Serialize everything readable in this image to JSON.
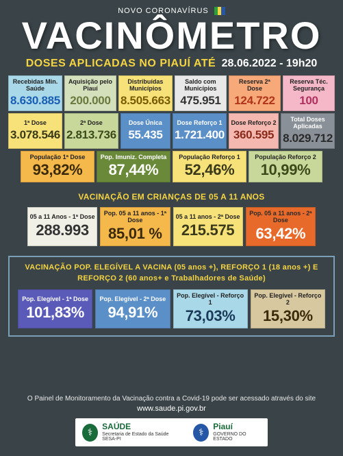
{
  "header": {
    "pretitle": "NOVO CORONAVÍRUS",
    "flag_colors": [
      "#2e9e3a",
      "#f5d442",
      "#2657a6"
    ],
    "title": "VACINÔMETRO",
    "subtitle1": "DOSES APLICADAS NO PIAUÍ ATÉ",
    "subtitle2": "28.06.2022 - 19h20"
  },
  "row1": [
    {
      "label": "Recebidas Min. Saúde",
      "value": "8.630.885",
      "bg": "#a9d8e8",
      "fg": "#1a5fb4"
    },
    {
      "label": "Aquisição pelo Piauí",
      "value": "200.000",
      "bg": "#d4dfbc",
      "fg": "#6a7a3e"
    },
    {
      "label": "Distribuídas Municípios",
      "value": "8.505.663",
      "bg": "#f7e27a",
      "fg": "#7a5c00"
    },
    {
      "label": "Saldo com Municípios",
      "value": "475.951",
      "bg": "#e8e8e8",
      "fg": "#333333"
    },
    {
      "label": "Reserva 2ª Dose",
      "value": "124.722",
      "bg": "#f7a97a",
      "fg": "#b0341a"
    },
    {
      "label": "Reserva Téc. Segurança",
      "value": "100",
      "bg": "#f5b8c8",
      "fg": "#b03060"
    }
  ],
  "row2": [
    {
      "label": "1ª Dose",
      "value": "3.078.546",
      "bg": "#f7e27a",
      "fg": "#3a3a1a"
    },
    {
      "label": "2ª Dose",
      "value": "2.813.736",
      "bg": "#c8d89a",
      "fg": "#3a4a1a"
    },
    {
      "label": "Dose Única",
      "value": "55.435",
      "bg": "#5a8fc8",
      "fg": "#ffffff",
      "label_fg": "#ffffff"
    },
    {
      "label": "Dose Reforço 1",
      "value": "1.721.400",
      "bg": "#5a8fc8",
      "fg": "#ffffff",
      "label_fg": "#ffffff"
    },
    {
      "label": "Dose Reforço 2",
      "value": "360.595",
      "bg": "#f5b8b0",
      "fg": "#8a2a1a"
    },
    {
      "label": "Total Doses Aplicadas",
      "value": "8.029.712",
      "bg": "#8a9098",
      "fg": "#2a2a2a",
      "label_fg": "#ffffff"
    }
  ],
  "row3": [
    {
      "label": "População 1ª Dose",
      "value": "93,82%",
      "bg": "#f5b84a",
      "fg": "#3a2a0a"
    },
    {
      "label": "Pop. Imuniz. Completa",
      "value": "87,44%",
      "bg": "#6a8a3a",
      "fg": "#ffffff",
      "label_fg": "#ffffff"
    },
    {
      "label": "População Reforço 1",
      "value": "52,46%",
      "bg": "#f7e27a",
      "fg": "#3a3a1a"
    },
    {
      "label": "População Reforço 2",
      "value": "10,99%",
      "bg": "#c8d89a",
      "fg": "#3a4a1a"
    }
  ],
  "section_children": {
    "title": "VACINAÇÃO EM CRIANÇAS DE 05 A 11 ANOS",
    "cells": [
      {
        "label": "05 a 11 Anos - 1ª Dose",
        "value": "288.993",
        "bg": "#f0f0e6",
        "fg": "#333333"
      },
      {
        "label": "Pop. 05 a 11 anos - 1ª Dose",
        "value": "85,01 %",
        "bg": "#f5b84a",
        "fg": "#3a2a0a"
      },
      {
        "label": "05 a 11 anos - 2ª Dose",
        "value": "215.575",
        "bg": "#f7e27a",
        "fg": "#3a3a1a"
      },
      {
        "label": "Pop. 05 a 11 anos - 2ª Dose",
        "value": "63,42%",
        "bg": "#e86a2a",
        "fg": "#ffffff",
        "label_fg": "#2a2a2a"
      }
    ]
  },
  "section_eligible": {
    "title": "VACINAÇÃO POP. ELEGÍVEL A VACINA (05 anos +), REFORÇO 1 (18 anos +) E REFORÇO 2 (60 anos+ e Trabalhadores de Saúde)",
    "cells": [
      {
        "label": "Pop. Elegível - 1ª Dose",
        "value": "101,83%",
        "bg": "#5a5ab8",
        "fg": "#ffffff",
        "label_fg": "#ffffff"
      },
      {
        "label": "Pop. Elegível - 2ª Dose",
        "value": "94,91%",
        "bg": "#5a8fc8",
        "fg": "#ffffff",
        "label_fg": "#ffffff"
      },
      {
        "label": "Pop. Elegível - Reforço 1",
        "value": "73,03%",
        "bg": "#a9d8e8",
        "fg": "#1a3a5a"
      },
      {
        "label": "Pop. Elegível - Reforço 2",
        "value": "15,30%",
        "bg": "#d8c8a0",
        "fg": "#3a2a0a"
      }
    ]
  },
  "footer": {
    "text": "O Painel de Monitoramento da Vacinação contra a Covid-19 pode ser acessado através do site",
    "url": "www.saude.pi.gov.br",
    "logos": [
      {
        "title": "SAÚDE",
        "subtitle": "Secretaria de Estado da Saúde SESA-PI",
        "crest_bg": "#1a6b3a"
      },
      {
        "title": "Piauí",
        "subtitle": "GOVERNO DO ESTADO",
        "crest_bg": "#2657a6"
      }
    ]
  },
  "background_color": "#3a4448"
}
